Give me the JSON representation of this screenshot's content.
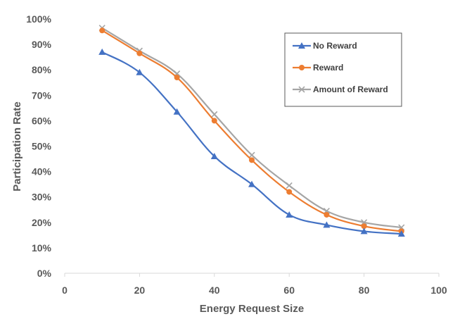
{
  "chart_data": {
    "type": "line",
    "title": "",
    "xlabel": "Energy Request Size",
    "ylabel": "Participation Rate",
    "xlim": [
      0,
      100
    ],
    "ylim": [
      0,
      100
    ],
    "x_ticks": [
      0,
      20,
      40,
      60,
      80,
      100
    ],
    "x_tick_labels": [
      "0",
      "20",
      "40",
      "60",
      "80",
      "100"
    ],
    "y_ticks": [
      0,
      10,
      20,
      30,
      40,
      50,
      60,
      70,
      80,
      90,
      100
    ],
    "y_tick_labels": [
      "0%",
      "10%",
      "20%",
      "30%",
      "40%",
      "50%",
      "60%",
      "70%",
      "80%",
      "90%",
      "100%"
    ],
    "grid": false,
    "legend_position": "top-right",
    "x": [
      10,
      20,
      30,
      40,
      50,
      60,
      70,
      80,
      90
    ],
    "series": [
      {
        "name": "No Reward",
        "color": "#4472C4",
        "marker": "triangle",
        "values": [
          87,
          79,
          63.5,
          46,
          35,
          23,
          19,
          16.5,
          15.5
        ]
      },
      {
        "name": "Reward",
        "color": "#ED7D31",
        "marker": "circle",
        "values": [
          95.5,
          86.5,
          77,
          60,
          44.5,
          32,
          23,
          18.5,
          16.5
        ]
      },
      {
        "name": "Amount of Reward",
        "color": "#A5A5A5",
        "marker": "x",
        "values": [
          96.5,
          87.5,
          78.5,
          62.5,
          46.5,
          34.5,
          24.5,
          20,
          18
        ]
      }
    ]
  }
}
